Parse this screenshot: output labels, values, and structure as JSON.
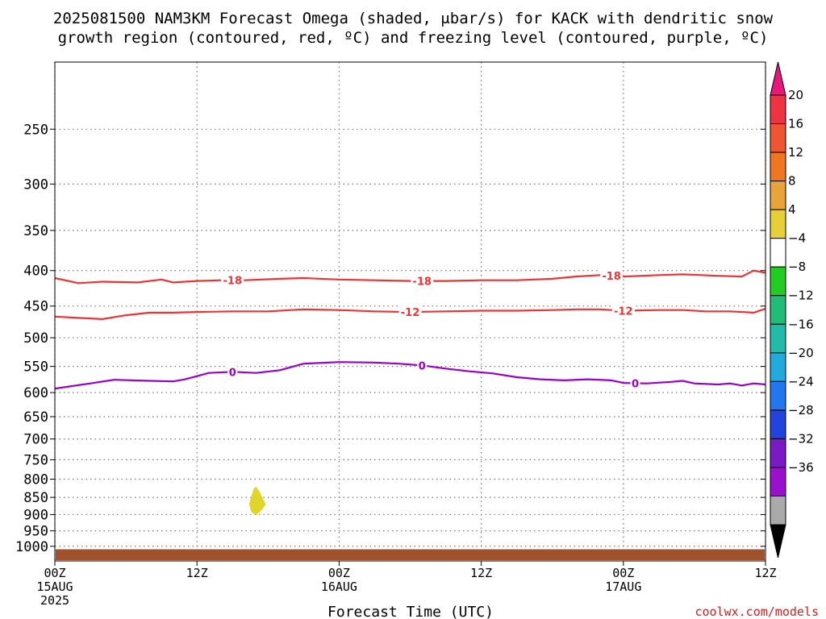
{
  "title": {
    "line1": "2025081500 NAM3KM Forecast Omega (shaded, μbar/s) for KACK with dendritic snow",
    "line2": "growth region (contoured, red, ºC) and freezing level (contoured, purple, ºC)"
  },
  "credit": "coolwx.com/models",
  "colors": {
    "dgz_contour": "#ee3333",
    "freezing_contour": "#9900cc",
    "ground": "#a0522d",
    "omega_positive_fill": "#e0d62a",
    "grid": "#777777"
  },
  "chart_data": {
    "type": "time-height contour",
    "xlabel": "Forecast Time (UTC)",
    "ylabel": "",
    "x_unit": "hours since 2025-08-15 00Z",
    "x_range": [
      0,
      60
    ],
    "y_scale": "log pressure (hPa)",
    "y_range": [
      1050,
      200
    ],
    "x_ticks": [
      {
        "x": 0,
        "label": "00Z",
        "sub1": "15AUG",
        "sub2": "2025"
      },
      {
        "x": 12,
        "label": "12Z",
        "sub1": "",
        "sub2": ""
      },
      {
        "x": 24,
        "label": "00Z",
        "sub1": "16AUG",
        "sub2": ""
      },
      {
        "x": 36,
        "label": "12Z",
        "sub1": "",
        "sub2": ""
      },
      {
        "x": 48,
        "label": "00Z",
        "sub1": "17AUG",
        "sub2": ""
      },
      {
        "x": 60,
        "label": "12Z",
        "sub1": "",
        "sub2": ""
      }
    ],
    "y_ticks": [
      {
        "p": 250,
        "label": "250"
      },
      {
        "p": 300,
        "label": "300"
      },
      {
        "p": 350,
        "label": "350"
      },
      {
        "p": 400,
        "label": "400"
      },
      {
        "p": 450,
        "label": "450"
      },
      {
        "p": 500,
        "label": "500"
      },
      {
        "p": 550,
        "label": "550"
      },
      {
        "p": 600,
        "label": "600"
      },
      {
        "p": 650,
        "label": "650"
      },
      {
        "p": 700,
        "label": "700"
      },
      {
        "p": 750,
        "label": "750"
      },
      {
        "p": 800,
        "label": "800"
      },
      {
        "p": 850,
        "label": "850"
      },
      {
        "p": 900,
        "label": "900"
      },
      {
        "p": 950,
        "label": "950"
      },
      {
        "p": 1000,
        "label": "1000"
      }
    ],
    "contours": [
      {
        "name": "-18 °C",
        "color": "#ee3333",
        "points": [
          [
            0,
            410
          ],
          [
            2,
            417
          ],
          [
            4,
            415
          ],
          [
            7,
            416
          ],
          [
            9,
            412
          ],
          [
            10,
            416
          ],
          [
            12,
            414
          ],
          [
            14,
            413
          ],
          [
            16,
            413
          ],
          [
            19,
            411
          ],
          [
            21,
            410
          ],
          [
            24,
            412
          ],
          [
            27,
            413
          ],
          [
            30,
            414
          ],
          [
            33,
            414
          ],
          [
            36,
            413
          ],
          [
            39,
            413
          ],
          [
            42,
            411
          ],
          [
            44,
            408
          ],
          [
            46,
            406
          ],
          [
            48,
            408
          ],
          [
            51,
            406
          ],
          [
            53,
            405
          ],
          [
            56,
            407
          ],
          [
            58,
            408
          ],
          [
            59,
            400
          ],
          [
            60,
            403
          ]
        ],
        "labels": [
          {
            "x": 15,
            "text": "-18"
          },
          {
            "x": 31,
            "text": "-18"
          },
          {
            "x": 47,
            "text": "-18"
          }
        ]
      },
      {
        "name": "-12 °C",
        "color": "#ee3333",
        "points": [
          [
            0,
            466
          ],
          [
            2,
            468
          ],
          [
            4,
            470
          ],
          [
            6,
            464
          ],
          [
            8,
            460
          ],
          [
            10,
            460
          ],
          [
            12,
            459
          ],
          [
            15,
            458
          ],
          [
            18,
            458
          ],
          [
            21,
            455
          ],
          [
            24,
            456
          ],
          [
            27,
            458
          ],
          [
            30,
            459
          ],
          [
            33,
            458
          ],
          [
            36,
            457
          ],
          [
            39,
            457
          ],
          [
            42,
            456
          ],
          [
            44,
            455
          ],
          [
            46,
            455
          ],
          [
            48,
            457
          ],
          [
            51,
            456
          ],
          [
            53,
            456
          ],
          [
            55,
            458
          ],
          [
            57,
            458
          ],
          [
            59,
            460
          ],
          [
            60,
            454
          ]
        ],
        "labels": [
          {
            "x": 30,
            "text": "-12"
          },
          {
            "x": 48,
            "text": "-12"
          }
        ]
      },
      {
        "name": "0 °C",
        "color": "#9900cc",
        "points": [
          [
            0,
            592
          ],
          [
            3,
            582
          ],
          [
            5,
            575
          ],
          [
            8,
            577
          ],
          [
            10,
            578
          ],
          [
            11,
            574
          ],
          [
            13,
            562
          ],
          [
            15,
            560
          ],
          [
            17,
            562
          ],
          [
            19,
            557
          ],
          [
            21,
            545
          ],
          [
            24,
            542
          ],
          [
            27,
            543
          ],
          [
            29,
            545
          ],
          [
            31,
            548
          ],
          [
            33,
            554
          ],
          [
            35,
            559
          ],
          [
            37,
            563
          ],
          [
            39,
            570
          ],
          [
            41,
            574
          ],
          [
            43,
            576
          ],
          [
            45,
            574
          ],
          [
            47,
            576
          ],
          [
            48,
            581
          ],
          [
            50,
            582
          ],
          [
            52,
            579
          ],
          [
            53,
            577
          ],
          [
            54,
            582
          ],
          [
            56,
            584
          ],
          [
            57,
            582
          ],
          [
            58,
            586
          ],
          [
            59,
            582
          ],
          [
            60,
            584
          ]
        ],
        "labels": [
          {
            "x": 15,
            "text": "0"
          },
          {
            "x": 31,
            "text": "0"
          },
          {
            "x": 49,
            "text": "0"
          }
        ]
      }
    ],
    "shaded_regions": [
      {
        "name": "omega 4 to 8",
        "color": "#e0d62a",
        "points": [
          [
            17,
            820
          ],
          [
            17.3,
            835
          ],
          [
            17.8,
            870
          ],
          [
            17.5,
            885
          ],
          [
            17.2,
            895
          ],
          [
            17.0,
            902
          ],
          [
            16.6,
            893
          ],
          [
            16.4,
            870
          ],
          [
            16.6,
            845
          ],
          [
            16.8,
            825
          ]
        ]
      }
    ],
    "ground": {
      "top_pressure": 1010,
      "color": "#a0522d"
    },
    "colorbar": {
      "unit": "μbar/s",
      "labels": [
        "20",
        "16",
        "12",
        "8",
        "4",
        "−4",
        "−8",
        "−12",
        "−16",
        "−20",
        "−24",
        "−28",
        "−32",
        "−36"
      ],
      "colors": [
        "#ee3344",
        "#ee5533",
        "#f07722",
        "#e8a33a",
        "#e6cf38",
        "#ffffff",
        "#22cc22",
        "#22bb77",
        "#22bbaa",
        "#22aadd",
        "#2277ee",
        "#2244dd",
        "#7a1ac2",
        "#9911cc",
        "#aaaaaa"
      ],
      "top_arrow_color": "#e6197a",
      "bottom_arrow_color": "#000000"
    }
  }
}
